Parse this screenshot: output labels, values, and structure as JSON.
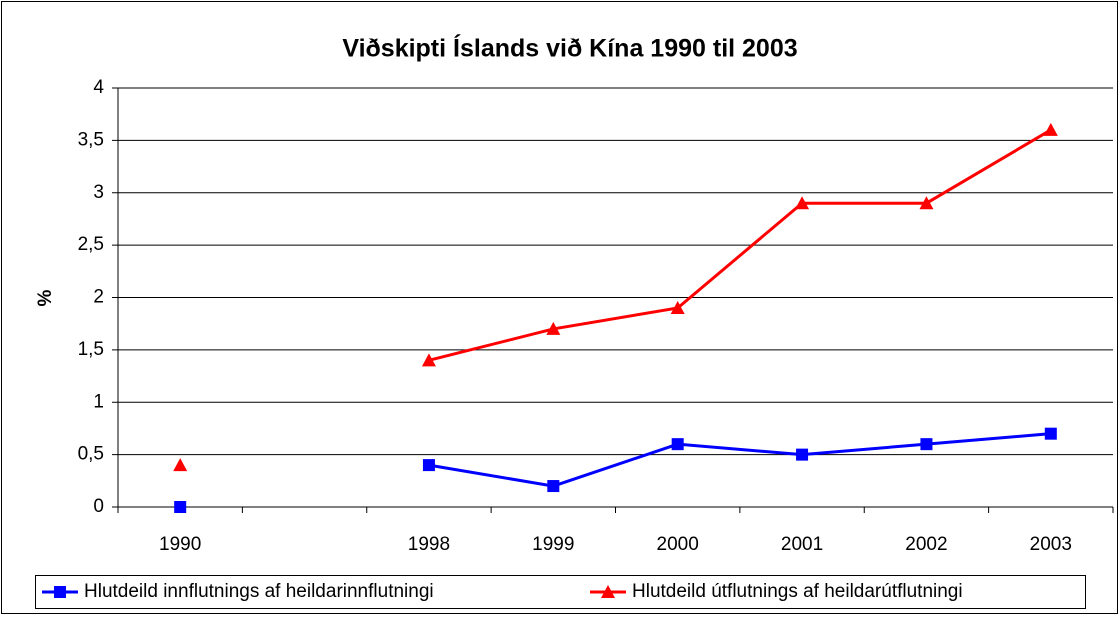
{
  "chart_data": {
    "type": "line",
    "title": "Viðskipti Íslands við Kína 1990 til 2003",
    "y_label": "%",
    "categories": [
      "1990",
      null,
      "1998",
      "1999",
      "2000",
      "2001",
      "2002",
      "2003"
    ],
    "series": [
      {
        "name": "Hlutdeild innflutnings af heildarinnflutningi",
        "color": "#0000ff",
        "marker": "square",
        "values": [
          0,
          null,
          0.4,
          0.2,
          0.6,
          0.5,
          0.6,
          0.7
        ]
      },
      {
        "name": "Hlutdeild útflutnings af heildarútflutningi",
        "color": "#ff0000",
        "marker": "triangle",
        "values": [
          0.4,
          null,
          1.4,
          1.7,
          1.9,
          2.9,
          2.9,
          3.6
        ]
      }
    ],
    "ylim": [
      0,
      4
    ],
    "yticks": [
      0,
      {
        "value": 0.5,
        "label": "0,5"
      },
      1,
      {
        "value": 1.5,
        "label": "1,5"
      },
      2,
      {
        "value": 2.5,
        "label": "2,5"
      },
      3,
      {
        "value": 3.5,
        "label": "3,5"
      },
      4
    ],
    "grid": true,
    "legend": "bottom"
  }
}
